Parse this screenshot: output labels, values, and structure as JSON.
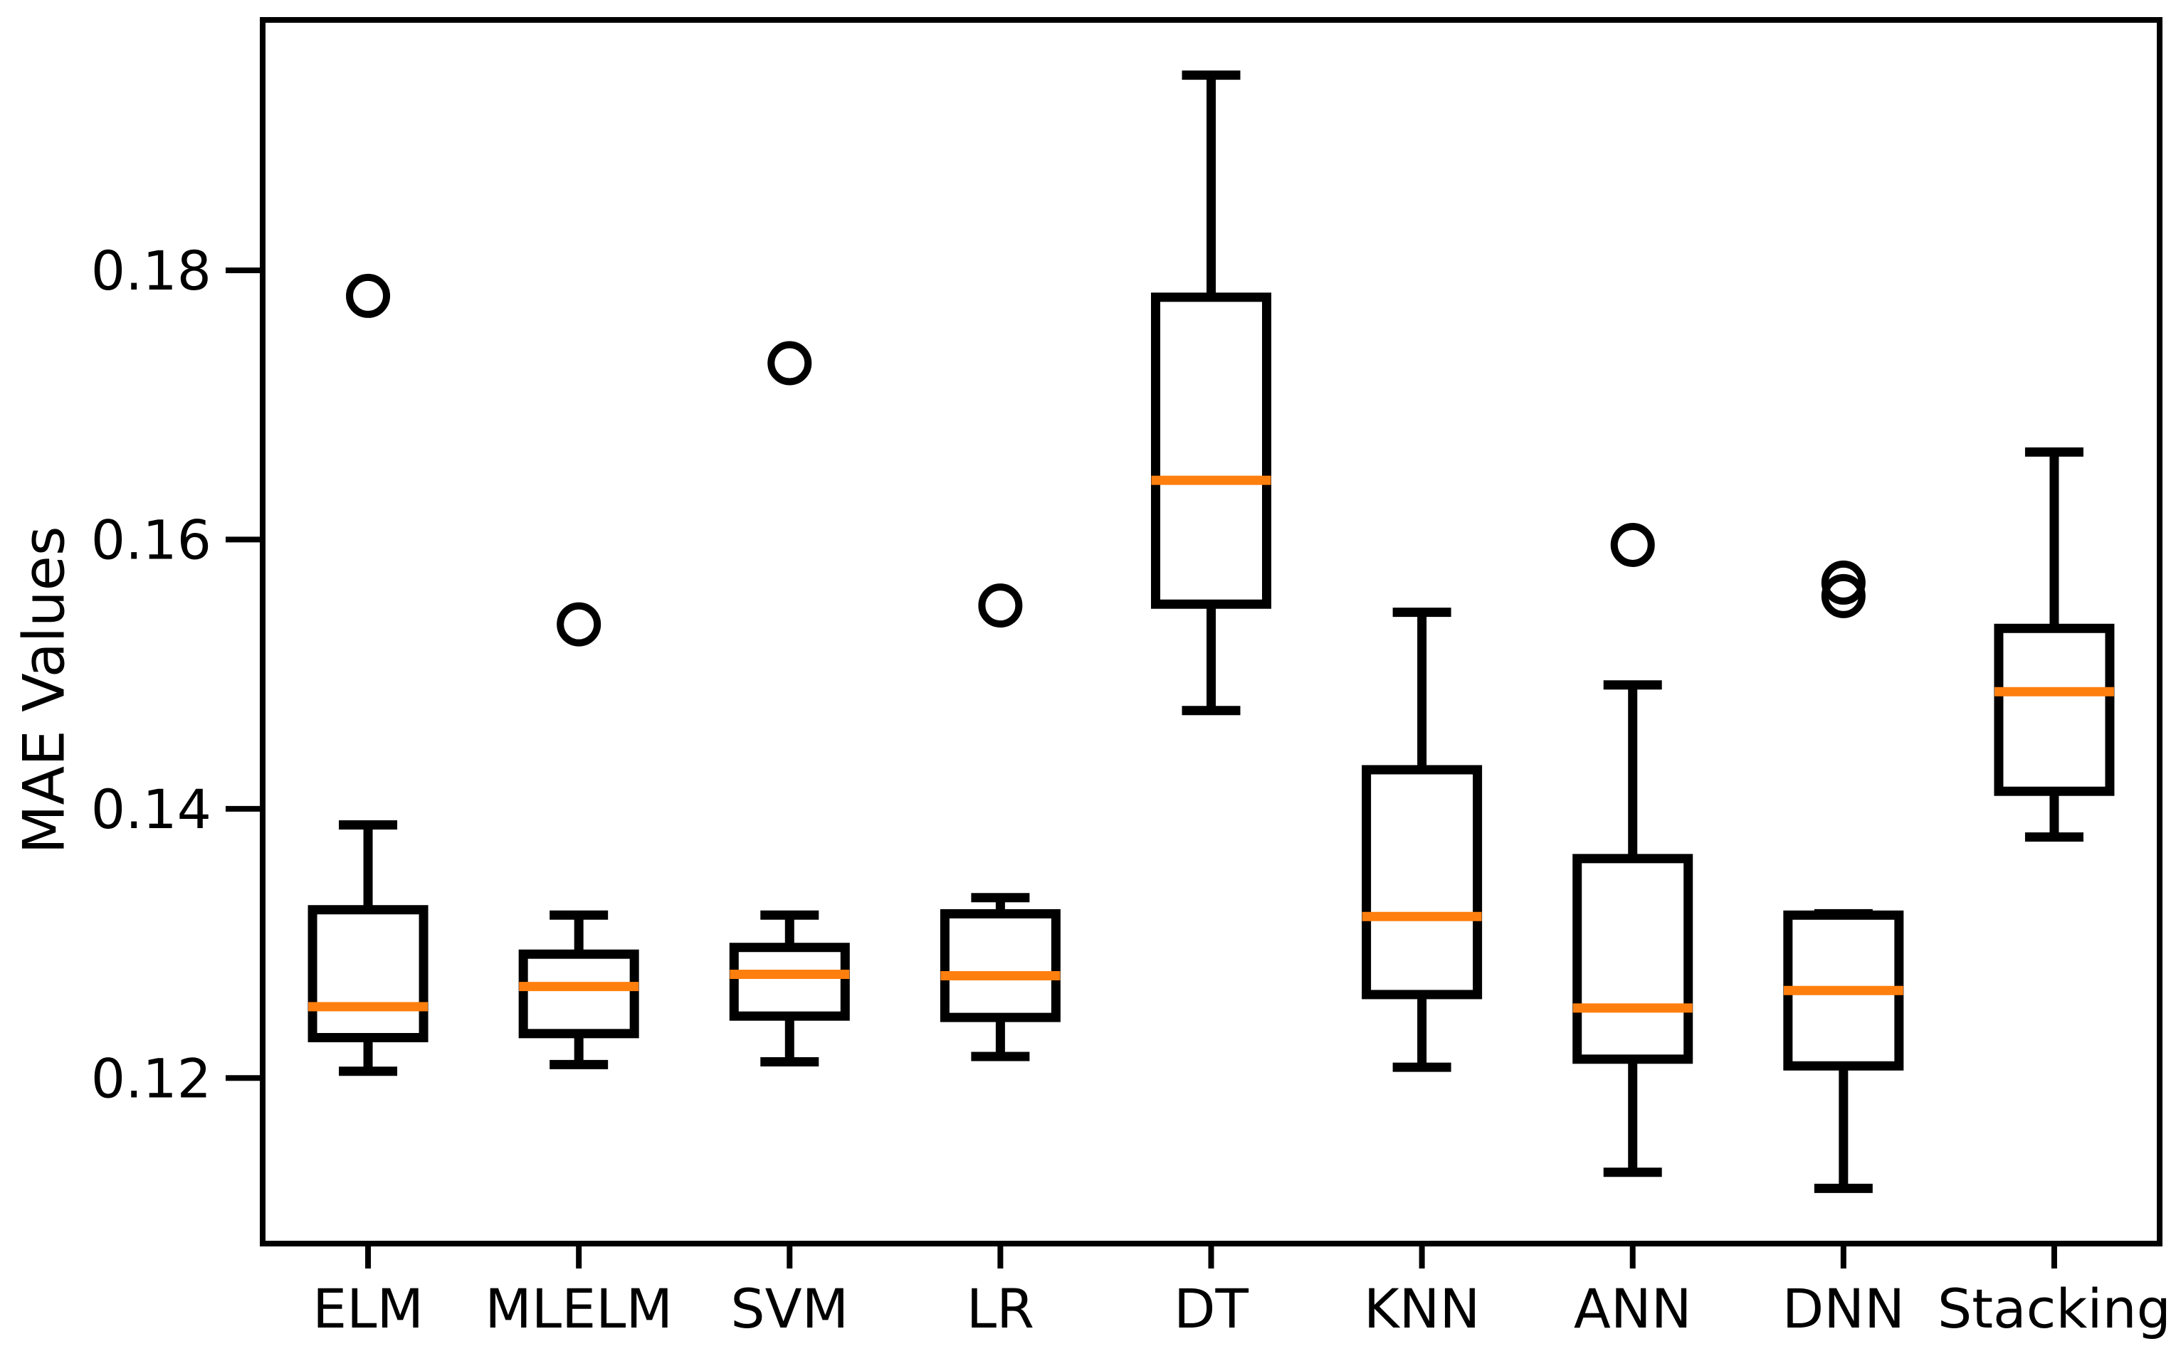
{
  "figure": {
    "background": "#ffffff",
    "line_color": "#000000",
    "median_color": "#ff7f0e",
    "spine_width": 8,
    "box_line_width": 13,
    "flier_radius": 26,
    "flier_stroke": 10
  },
  "chart_data": {
    "type": "boxplot",
    "title": "",
    "xlabel": "",
    "ylabel": "MAE Values",
    "categories": [
      "ELM",
      "MLELM",
      "SVM",
      "LR",
      "DT",
      "KNN",
      "ANN",
      "DNN",
      "Stacking"
    ],
    "yticks": [
      "0.12",
      "0.14",
      "0.16",
      "0.18"
    ],
    "ytick_values": [
      0.12,
      0.14,
      0.16,
      0.18
    ],
    "ylim": [
      0.1077,
      0.1986
    ],
    "grid": false,
    "legend": null,
    "series": [
      {
        "name": "ELM",
        "whislo": 0.1205,
        "q1": 0.123,
        "med": 0.1253,
        "q3": 0.1325,
        "whishi": 0.1388,
        "fliers": [
          0.1781
        ]
      },
      {
        "name": "MLELM",
        "whislo": 0.121,
        "q1": 0.1233,
        "med": 0.1268,
        "q3": 0.1292,
        "whishi": 0.1321,
        "fliers": [
          0.1537
        ]
      },
      {
        "name": "SVM",
        "whislo": 0.1212,
        "q1": 0.1246,
        "med": 0.1277,
        "q3": 0.1297,
        "whishi": 0.1321,
        "fliers": [
          0.1731
        ]
      },
      {
        "name": "LR",
        "whislo": 0.1216,
        "q1": 0.1245,
        "med": 0.1276,
        "q3": 0.1322,
        "whishi": 0.1334,
        "fliers": [
          0.1551
        ]
      },
      {
        "name": "DT",
        "whislo": 0.1473,
        "q1": 0.1552,
        "med": 0.1644,
        "q3": 0.178,
        "whishi": 0.1945,
        "fliers": []
      },
      {
        "name": "KNN",
        "whislo": 0.1208,
        "q1": 0.1262,
        "med": 0.132,
        "q3": 0.1429,
        "whishi": 0.1546,
        "fliers": []
      },
      {
        "name": "ANN",
        "whislo": 0.113,
        "q1": 0.1214,
        "med": 0.1252,
        "q3": 0.1363,
        "whishi": 0.1492,
        "fliers": [
          0.1596
        ]
      },
      {
        "name": "DNN",
        "whislo": 0.1118,
        "q1": 0.1209,
        "med": 0.1265,
        "q3": 0.1321,
        "whishi": 0.1322,
        "fliers": [
          0.1558,
          0.1568
        ]
      },
      {
        "name": "Stacking",
        "whislo": 0.1379,
        "q1": 0.1413,
        "med": 0.1487,
        "q3": 0.1534,
        "whishi": 0.1665,
        "fliers": []
      }
    ]
  }
}
